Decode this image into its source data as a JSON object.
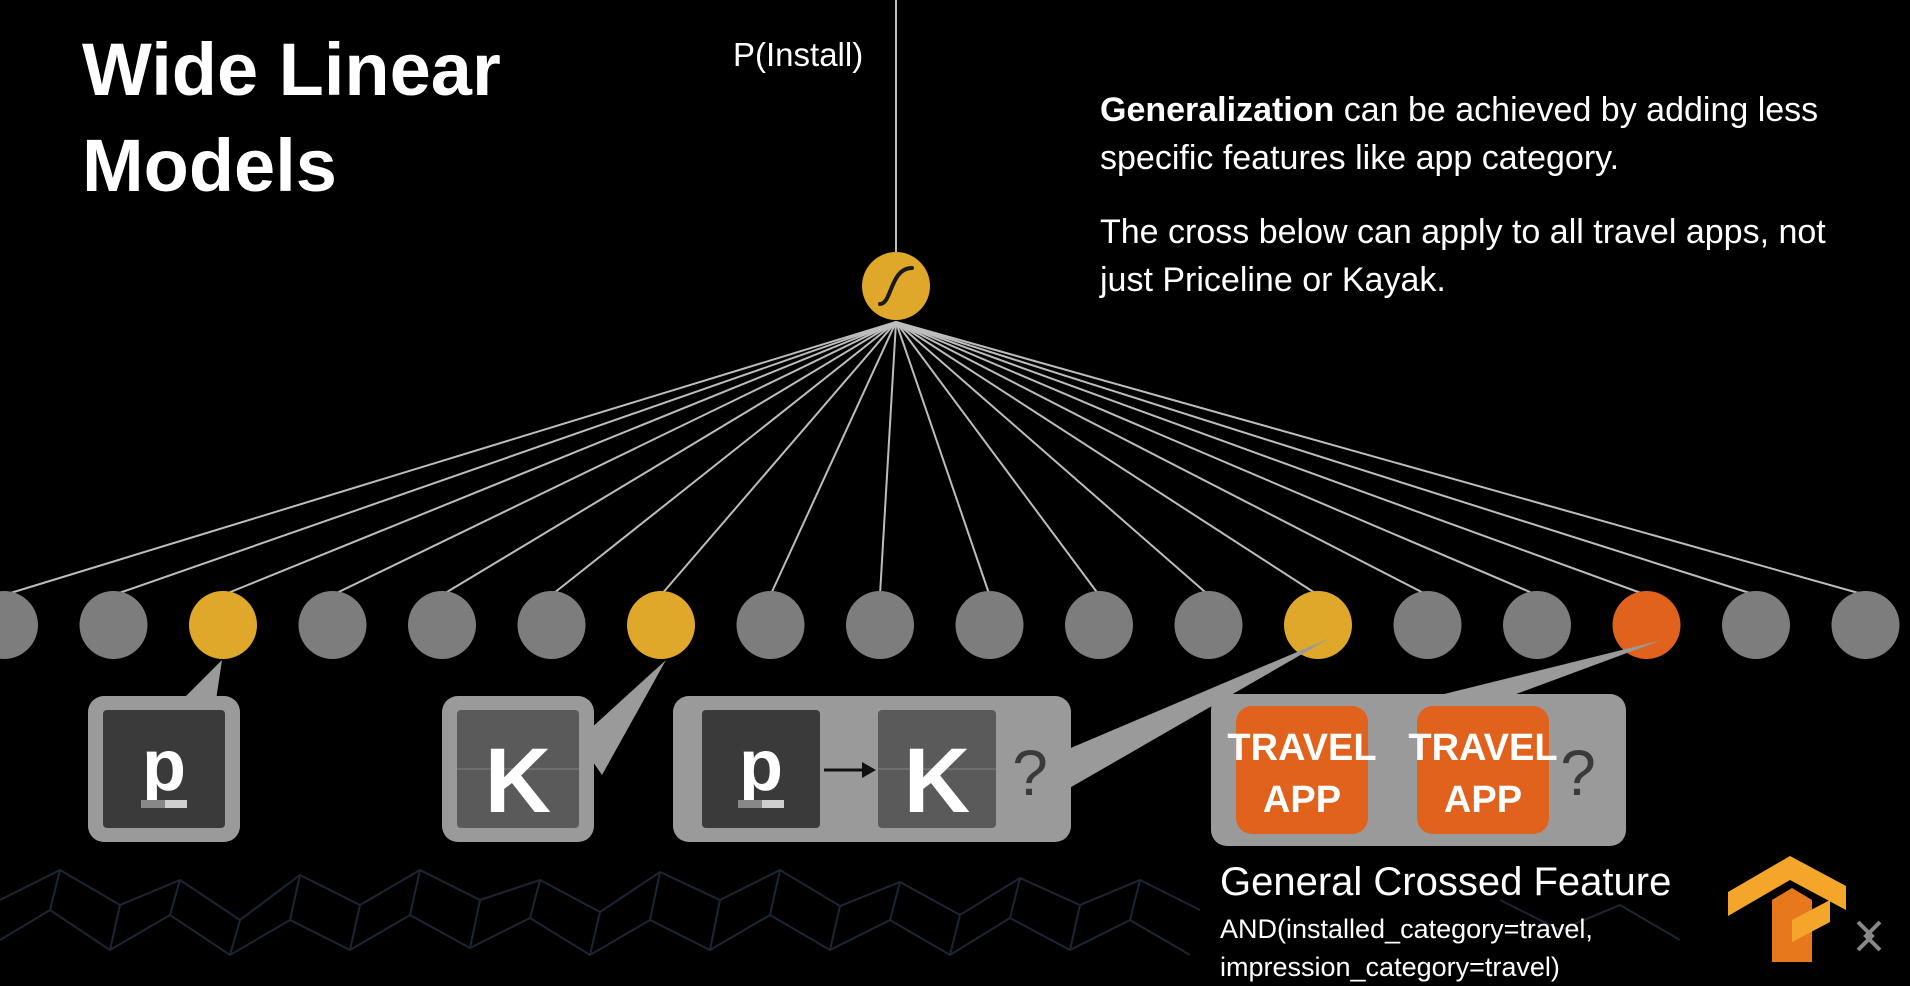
{
  "title_line1": "Wide Linear",
  "title_line2": "Models",
  "output_label": "P(Install)",
  "description": {
    "p1_bold": "Generalization",
    "p1_rest": " can be achieved by adding less specific features like app category.",
    "p2": "The cross below can apply to all travel apps, not just Priceline or Kayak."
  },
  "nodes": [
    {
      "state": "gray"
    },
    {
      "state": "gray"
    },
    {
      "state": "yellow"
    },
    {
      "state": "gray"
    },
    {
      "state": "gray"
    },
    {
      "state": "gray"
    },
    {
      "state": "yellow"
    },
    {
      "state": "gray"
    },
    {
      "state": "gray"
    },
    {
      "state": "gray"
    },
    {
      "state": "gray"
    },
    {
      "state": "gray"
    },
    {
      "state": "yellow"
    },
    {
      "state": "gray"
    },
    {
      "state": "gray"
    },
    {
      "state": "orange"
    },
    {
      "state": "gray"
    },
    {
      "state": "gray"
    }
  ],
  "cards": {
    "priceline_glyph": "p",
    "kayak_glyph": "K",
    "cross_a_glyph": "p",
    "cross_b_glyph": "K",
    "cross_question": "?",
    "travel_line1": "TRAVEL",
    "travel_line2": "APP",
    "travel_question": "?"
  },
  "feature": {
    "name": "General Crossed Feature",
    "expr_line1": "AND(installed_category=travel,",
    "expr_line2": "impression_category=travel)"
  },
  "colors": {
    "background": "#000000",
    "yellow": "#e0a82a",
    "orange": "#e0621c",
    "gray_node": "#7d7d7d",
    "card": "#9a9a9a",
    "line": "#bdbdbd"
  },
  "icons": [
    "tensorflow-logo-icon",
    "google-cloud-watermark-icon"
  ]
}
